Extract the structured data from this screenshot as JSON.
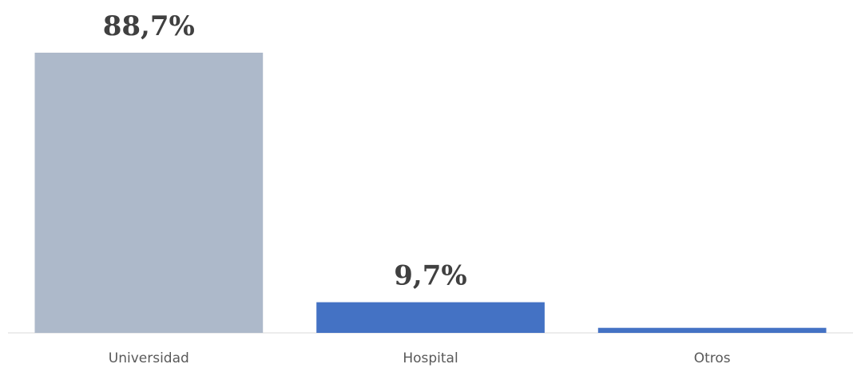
{
  "chart_data": {
    "type": "bar",
    "categories": [
      "Universidad",
      "Hospital",
      "Otros"
    ],
    "values": [
      88.7,
      9.7,
      1.6
    ],
    "data_labels": [
      "88,7%",
      "9,7%",
      ""
    ],
    "bar_colors": [
      "#ADB9CA",
      "#4472C4",
      "#4472C4"
    ],
    "axis_color": "#D9D9D9",
    "ylim": [
      0,
      88.7
    ],
    "grid": false,
    "legend": "none",
    "title": "",
    "xlabel": "",
    "ylabel": ""
  }
}
